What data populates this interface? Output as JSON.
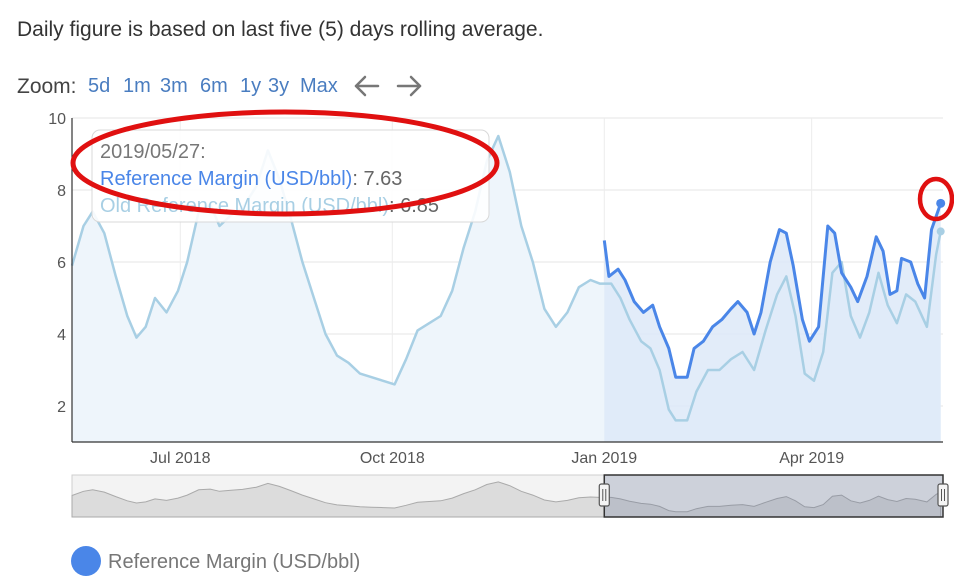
{
  "note": "Daily figure is based on last five (5) days rolling average.",
  "zoom": {
    "label": "Zoom:",
    "buttons": [
      "5d",
      "1m",
      "3m",
      "6m",
      "1y",
      "3y",
      "Max"
    ],
    "prev_icon": "arrow-left-icon",
    "next_icon": "arrow-right-icon"
  },
  "tooltip": {
    "date": "2019/05/27:",
    "ref_label": "Reference Margin (USD/bbl)",
    "ref_value": ": 7.63",
    "old_label": "Old Reference Margin (USD/bbl)",
    "old_value": ": 6.85"
  },
  "legend": {
    "label": "Reference Margin (USD/bbl)"
  },
  "colors": {
    "ref": "#4a86e8",
    "old": "#a8cfe4",
    "highlight": "#e01010",
    "navigator_selected": "#6b7a99"
  },
  "chart_data": {
    "type": "line",
    "ylim": [
      1,
      10
    ],
    "y_ticks": [
      2,
      4,
      6,
      8,
      10
    ],
    "x_range": [
      "2018-05-15",
      "2019-05-28"
    ],
    "x_ticks": [
      {
        "date": "2018-07-01",
        "label": "Jul 2018"
      },
      {
        "date": "2018-10-01",
        "label": "Oct 2018"
      },
      {
        "date": "2019-01-01",
        "label": "Jan 2019"
      },
      {
        "date": "2019-04-01",
        "label": "Apr 2019"
      }
    ],
    "series": [
      {
        "name": "Reference Margin (USD/bbl)",
        "points": [
          [
            "2019-01-01",
            6.6
          ],
          [
            "2019-01-03",
            5.6
          ],
          [
            "2019-01-07",
            5.8
          ],
          [
            "2019-01-10",
            5.5
          ],
          [
            "2019-01-14",
            4.9
          ],
          [
            "2019-01-18",
            4.6
          ],
          [
            "2019-01-22",
            4.8
          ],
          [
            "2019-01-25",
            4.2
          ],
          [
            "2019-01-29",
            3.6
          ],
          [
            "2019-02-01",
            2.8
          ],
          [
            "2019-02-06",
            2.8
          ],
          [
            "2019-02-09",
            3.6
          ],
          [
            "2019-02-13",
            3.8
          ],
          [
            "2019-02-17",
            4.2
          ],
          [
            "2019-02-21",
            4.4
          ],
          [
            "2019-02-25",
            4.7
          ],
          [
            "2019-02-28",
            4.9
          ],
          [
            "2019-03-04",
            4.6
          ],
          [
            "2019-03-07",
            4.0
          ],
          [
            "2019-03-10",
            4.6
          ],
          [
            "2019-03-14",
            6.0
          ],
          [
            "2019-03-18",
            6.9
          ],
          [
            "2019-03-21",
            6.8
          ],
          [
            "2019-03-24",
            5.9
          ],
          [
            "2019-03-28",
            4.4
          ],
          [
            "2019-03-31",
            3.8
          ],
          [
            "2019-04-04",
            4.2
          ],
          [
            "2019-04-08",
            7.0
          ],
          [
            "2019-04-11",
            6.8
          ],
          [
            "2019-04-14",
            5.7
          ],
          [
            "2019-04-18",
            5.3
          ],
          [
            "2019-04-21",
            4.9
          ],
          [
            "2019-04-25",
            5.6
          ],
          [
            "2019-04-29",
            6.7
          ],
          [
            "2019-05-02",
            6.3
          ],
          [
            "2019-05-05",
            5.1
          ],
          [
            "2019-05-08",
            5.2
          ],
          [
            "2019-05-10",
            6.1
          ],
          [
            "2019-05-14",
            6.0
          ],
          [
            "2019-05-17",
            5.4
          ],
          [
            "2019-05-20",
            5.0
          ],
          [
            "2019-05-23",
            6.9
          ],
          [
            "2019-05-27",
            7.63
          ]
        ]
      },
      {
        "name": "Old Reference Margin (USD/bbl)",
        "points": [
          [
            "2018-05-15",
            5.9
          ],
          [
            "2018-05-20",
            7.0
          ],
          [
            "2018-05-24",
            7.4
          ],
          [
            "2018-05-29",
            6.8
          ],
          [
            "2018-06-03",
            5.6
          ],
          [
            "2018-06-08",
            4.5
          ],
          [
            "2018-06-12",
            3.9
          ],
          [
            "2018-06-16",
            4.2
          ],
          [
            "2018-06-20",
            5.0
          ],
          [
            "2018-06-25",
            4.6
          ],
          [
            "2018-06-30",
            5.2
          ],
          [
            "2018-07-04",
            6.0
          ],
          [
            "2018-07-09",
            7.4
          ],
          [
            "2018-07-14",
            7.6
          ],
          [
            "2018-07-18",
            7.0
          ],
          [
            "2018-07-23",
            7.3
          ],
          [
            "2018-07-28",
            7.5
          ],
          [
            "2018-08-03",
            8.1
          ],
          [
            "2018-08-08",
            9.1
          ],
          [
            "2018-08-13",
            8.3
          ],
          [
            "2018-08-18",
            7.2
          ],
          [
            "2018-08-23",
            6.0
          ],
          [
            "2018-08-28",
            5.0
          ],
          [
            "2018-09-02",
            4.0
          ],
          [
            "2018-09-07",
            3.4
          ],
          [
            "2018-09-12",
            3.2
          ],
          [
            "2018-09-17",
            2.9
          ],
          [
            "2018-09-22",
            2.8
          ],
          [
            "2018-09-27",
            2.7
          ],
          [
            "2018-10-02",
            2.6
          ],
          [
            "2018-10-07",
            3.3
          ],
          [
            "2018-10-12",
            4.1
          ],
          [
            "2018-10-17",
            4.3
          ],
          [
            "2018-10-22",
            4.5
          ],
          [
            "2018-10-27",
            5.2
          ],
          [
            "2018-11-01",
            6.4
          ],
          [
            "2018-11-06",
            7.4
          ],
          [
            "2018-11-11",
            8.8
          ],
          [
            "2018-11-16",
            9.5
          ],
          [
            "2018-11-21",
            8.5
          ],
          [
            "2018-11-26",
            7.0
          ],
          [
            "2018-12-01",
            6.0
          ],
          [
            "2018-12-06",
            4.7
          ],
          [
            "2018-12-11",
            4.2
          ],
          [
            "2018-12-16",
            4.6
          ],
          [
            "2018-12-21",
            5.3
          ],
          [
            "2018-12-26",
            5.5
          ],
          [
            "2018-12-30",
            5.4
          ],
          [
            "2019-01-04",
            5.4
          ],
          [
            "2019-01-08",
            5.0
          ],
          [
            "2019-01-12",
            4.4
          ],
          [
            "2019-01-17",
            3.8
          ],
          [
            "2019-01-21",
            3.6
          ],
          [
            "2019-01-25",
            3.0
          ],
          [
            "2019-01-29",
            1.9
          ],
          [
            "2019-02-01",
            1.6
          ],
          [
            "2019-02-06",
            1.6
          ],
          [
            "2019-02-10",
            2.4
          ],
          [
            "2019-02-15",
            3.0
          ],
          [
            "2019-02-20",
            3.0
          ],
          [
            "2019-02-25",
            3.3
          ],
          [
            "2019-03-02",
            3.5
          ],
          [
            "2019-03-07",
            3.0
          ],
          [
            "2019-03-12",
            4.1
          ],
          [
            "2019-03-17",
            5.1
          ],
          [
            "2019-03-21",
            5.6
          ],
          [
            "2019-03-25",
            4.5
          ],
          [
            "2019-03-29",
            2.9
          ],
          [
            "2019-04-02",
            2.7
          ],
          [
            "2019-04-06",
            3.5
          ],
          [
            "2019-04-10",
            5.7
          ],
          [
            "2019-04-14",
            6.0
          ],
          [
            "2019-04-18",
            4.5
          ],
          [
            "2019-04-22",
            3.9
          ],
          [
            "2019-04-26",
            4.6
          ],
          [
            "2019-04-30",
            5.7
          ],
          [
            "2019-05-04",
            4.8
          ],
          [
            "2019-05-08",
            4.3
          ],
          [
            "2019-05-12",
            5.1
          ],
          [
            "2019-05-16",
            4.9
          ],
          [
            "2019-05-21",
            4.2
          ],
          [
            "2019-05-25",
            6.2
          ],
          [
            "2019-05-27",
            6.85
          ]
        ]
      }
    ],
    "navigator": {
      "selected_from": "2019-01-01",
      "selected_to": "2019-05-28"
    },
    "highlighted_point": {
      "date": "2019-05-27",
      "value": 7.63
    }
  }
}
